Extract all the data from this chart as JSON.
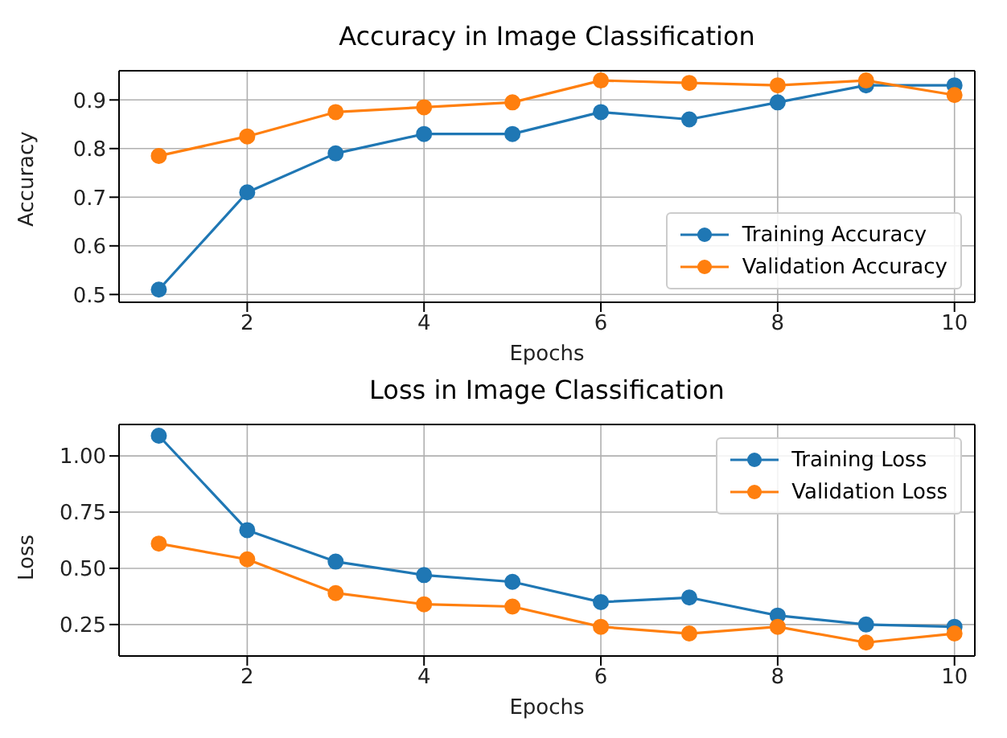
{
  "chart_data": [
    {
      "type": "line",
      "title": "Accuracy in Image Classification",
      "xlabel": "Epochs",
      "ylabel": "Accuracy",
      "x": [
        1,
        2,
        3,
        4,
        5,
        6,
        7,
        8,
        9,
        10
      ],
      "series": [
        {
          "name": "Training Accuracy",
          "color": "#1f77b4",
          "values": [
            0.51,
            0.71,
            0.79,
            0.83,
            0.83,
            0.875,
            0.86,
            0.895,
            0.93,
            0.93
          ]
        },
        {
          "name": "Validation Accuracy",
          "color": "#ff7f0e",
          "values": [
            0.785,
            0.825,
            0.875,
            0.885,
            0.895,
            0.94,
            0.935,
            0.93,
            0.94,
            0.91
          ]
        }
      ],
      "xlim": [
        0.55,
        10.23
      ],
      "xticks": [
        2,
        4,
        6,
        8,
        10
      ],
      "ylim": [
        0.484,
        0.96
      ],
      "yticks": [
        0.5,
        0.6,
        0.7,
        0.8,
        0.9
      ],
      "grid": true,
      "legend": "bottom right",
      "marker": "circle",
      "line_style": "solid"
    },
    {
      "type": "line",
      "title": "Loss in Image Classification",
      "xlabel": "Epochs",
      "ylabel": "Loss",
      "x": [
        1,
        2,
        3,
        4,
        5,
        6,
        7,
        8,
        9,
        10
      ],
      "series": [
        {
          "name": "Training Loss",
          "color": "#1f77b4",
          "values": [
            1.09,
            0.67,
            0.53,
            0.47,
            0.44,
            0.35,
            0.37,
            0.29,
            0.25,
            0.24
          ]
        },
        {
          "name": "Validation Loss",
          "color": "#ff7f0e",
          "values": [
            0.61,
            0.54,
            0.39,
            0.34,
            0.33,
            0.24,
            0.21,
            0.24,
            0.17,
            0.21
          ]
        }
      ],
      "xlim": [
        0.55,
        10.23
      ],
      "xticks": [
        2,
        4,
        6,
        8,
        10
      ],
      "ylim": [
        0.11,
        1.14
      ],
      "yticks": [
        {
          "value": 0.25,
          "label": "0.25"
        },
        {
          "value": 0.5,
          "label": "0.50"
        },
        {
          "value": 0.75,
          "label": "0.75"
        },
        {
          "value": 1,
          "label": "1.00"
        }
      ],
      "grid": true,
      "legend": "top right",
      "marker": "circle",
      "line_style": "solid"
    }
  ]
}
